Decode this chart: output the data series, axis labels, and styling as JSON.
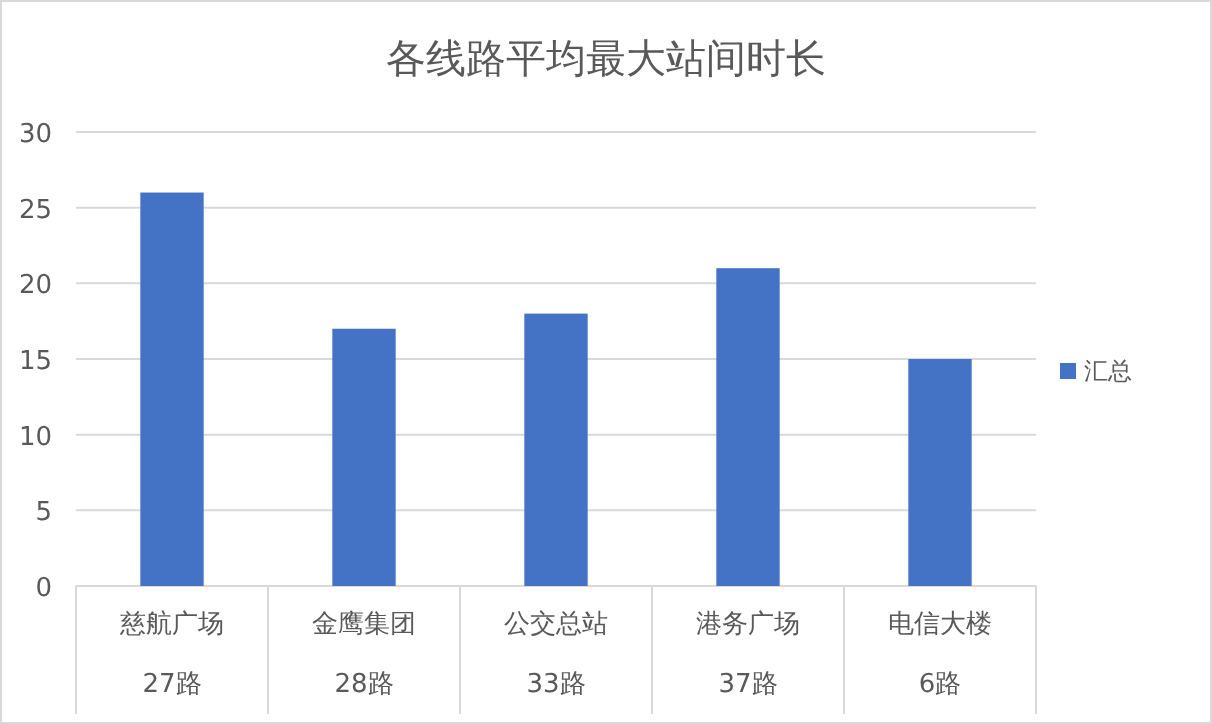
{
  "chart_data": {
    "type": "bar",
    "title": "各线路平均最大站间时长",
    "categories": [
      "慈航广场",
      "金鹰集团",
      "公交总站",
      "港务广场",
      "电信大楼"
    ],
    "series": [
      {
        "name": "汇总",
        "color": "#4472c4",
        "values": [
          26,
          17,
          18,
          21,
          15
        ]
      }
    ],
    "ylim": [
      0,
      30
    ],
    "yticks": [
      0,
      5,
      10,
      15,
      20,
      25,
      30
    ],
    "grid": "y",
    "legend": "right",
    "annotations": [
      "27路",
      "28路",
      "33路",
      "37路",
      "6路"
    ]
  }
}
